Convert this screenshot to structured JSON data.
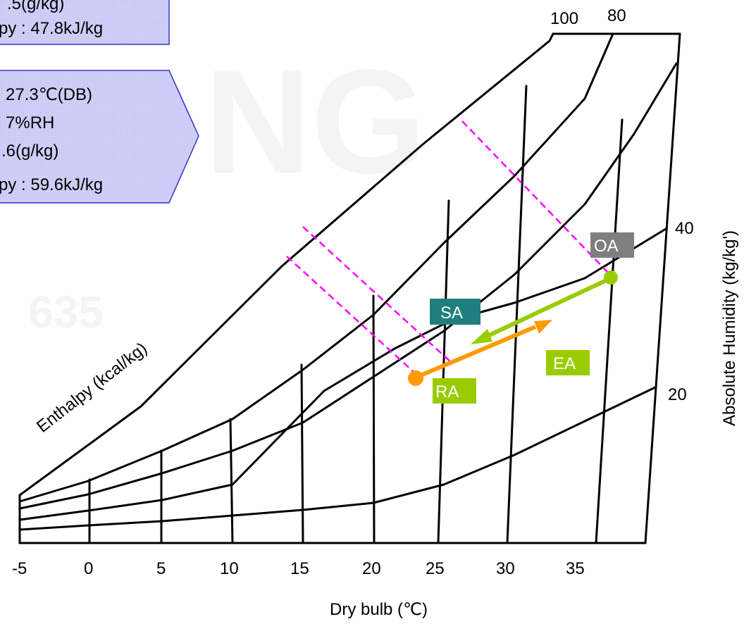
{
  "info_boxes": [
    {
      "lines": [
        ".5(g/kg)",
        "py : 47.8kJ/kg"
      ]
    },
    {
      "lines": [
        "27.3℃(DB)",
        "7%RH",
        ".6(g/kg)",
        "py : 59.6kJ/kg"
      ]
    }
  ],
  "watermark": {
    "letters": "NG",
    "digits": "635"
  },
  "axes": {
    "x_label": "Dry bulb (℃)",
    "x_ticks": [
      "-5",
      "0",
      "5",
      "10",
      "15",
      "20",
      "25",
      "30",
      "35"
    ],
    "y_label": "Absolute Humidity (kg/kg')",
    "y_ticks": [
      "40",
      "20"
    ],
    "rh_ticks": [
      "100",
      "80"
    ],
    "enthalpy_label": "Enthalpy (kcal/kg)"
  },
  "points": {
    "OA": {
      "label": "OA",
      "color": "#7f7f7f"
    },
    "SA": {
      "label": "SA",
      "color": "#1f7f7f"
    },
    "RA": {
      "label": "RA",
      "color": "#99cc00"
    },
    "EA": {
      "label": "EA",
      "color": "#99cc00"
    }
  },
  "colors": {
    "info_fill": "#ccccff",
    "info_stroke": "#3333cc",
    "green_arrow": "#99cc00",
    "orange_arrow": "#ff9900",
    "dash": "#ff00ff",
    "line": "#000000"
  }
}
